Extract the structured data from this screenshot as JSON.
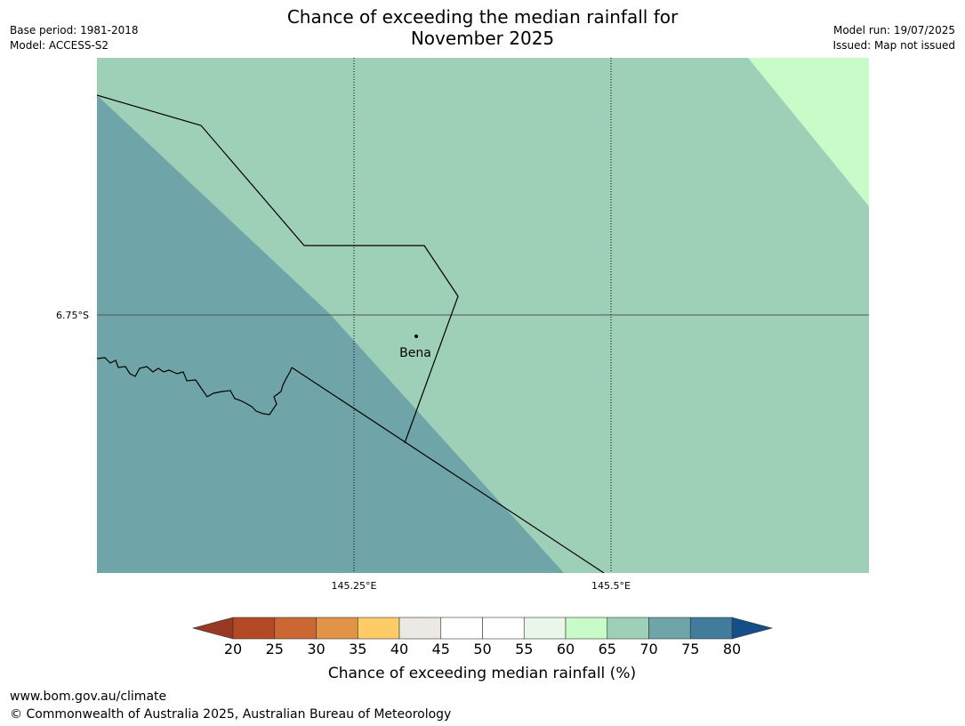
{
  "title": {
    "line1": "Chance of exceeding the median rainfall for",
    "line2": "November 2025"
  },
  "meta_left": {
    "base_period": "Base period: 1981-2018",
    "model": "Model: ACCESS-S2"
  },
  "meta_right": {
    "model_run": "Model run: 19/07/2025",
    "issued": "Issued: Map not issued"
  },
  "map": {
    "lat_label": "6.75°S",
    "lon_labels": [
      "145.25°E",
      "145.5°E"
    ],
    "place": {
      "name": "Bena"
    },
    "colors": {
      "band_65_70": "#9ed0b8",
      "band_70_75": "#6fa4a8",
      "band_60_65": "#c9fbc8"
    }
  },
  "colorbar": {
    "title": "Chance of exceeding median rainfall (%)",
    "ticks": [
      "20",
      "25",
      "30",
      "35",
      "40",
      "45",
      "50",
      "55",
      "60",
      "65",
      "70",
      "75",
      "80"
    ],
    "colors": [
      "#b34a25",
      "#cc6632",
      "#e19347",
      "#fecc66",
      "#ece8e3",
      "#ffffff",
      "#ffffff",
      "#e9f7e9",
      "#c9fbc8",
      "#9ed0b8",
      "#6fa4a8",
      "#427b9c"
    ],
    "low_extend_color": "#983a23",
    "high_extend_color": "#144f8a"
  },
  "footer": {
    "url": "www.bom.gov.au/climate",
    "copyright": "© Commonwealth of Australia 2025, Australian Bureau of Meteorology"
  }
}
